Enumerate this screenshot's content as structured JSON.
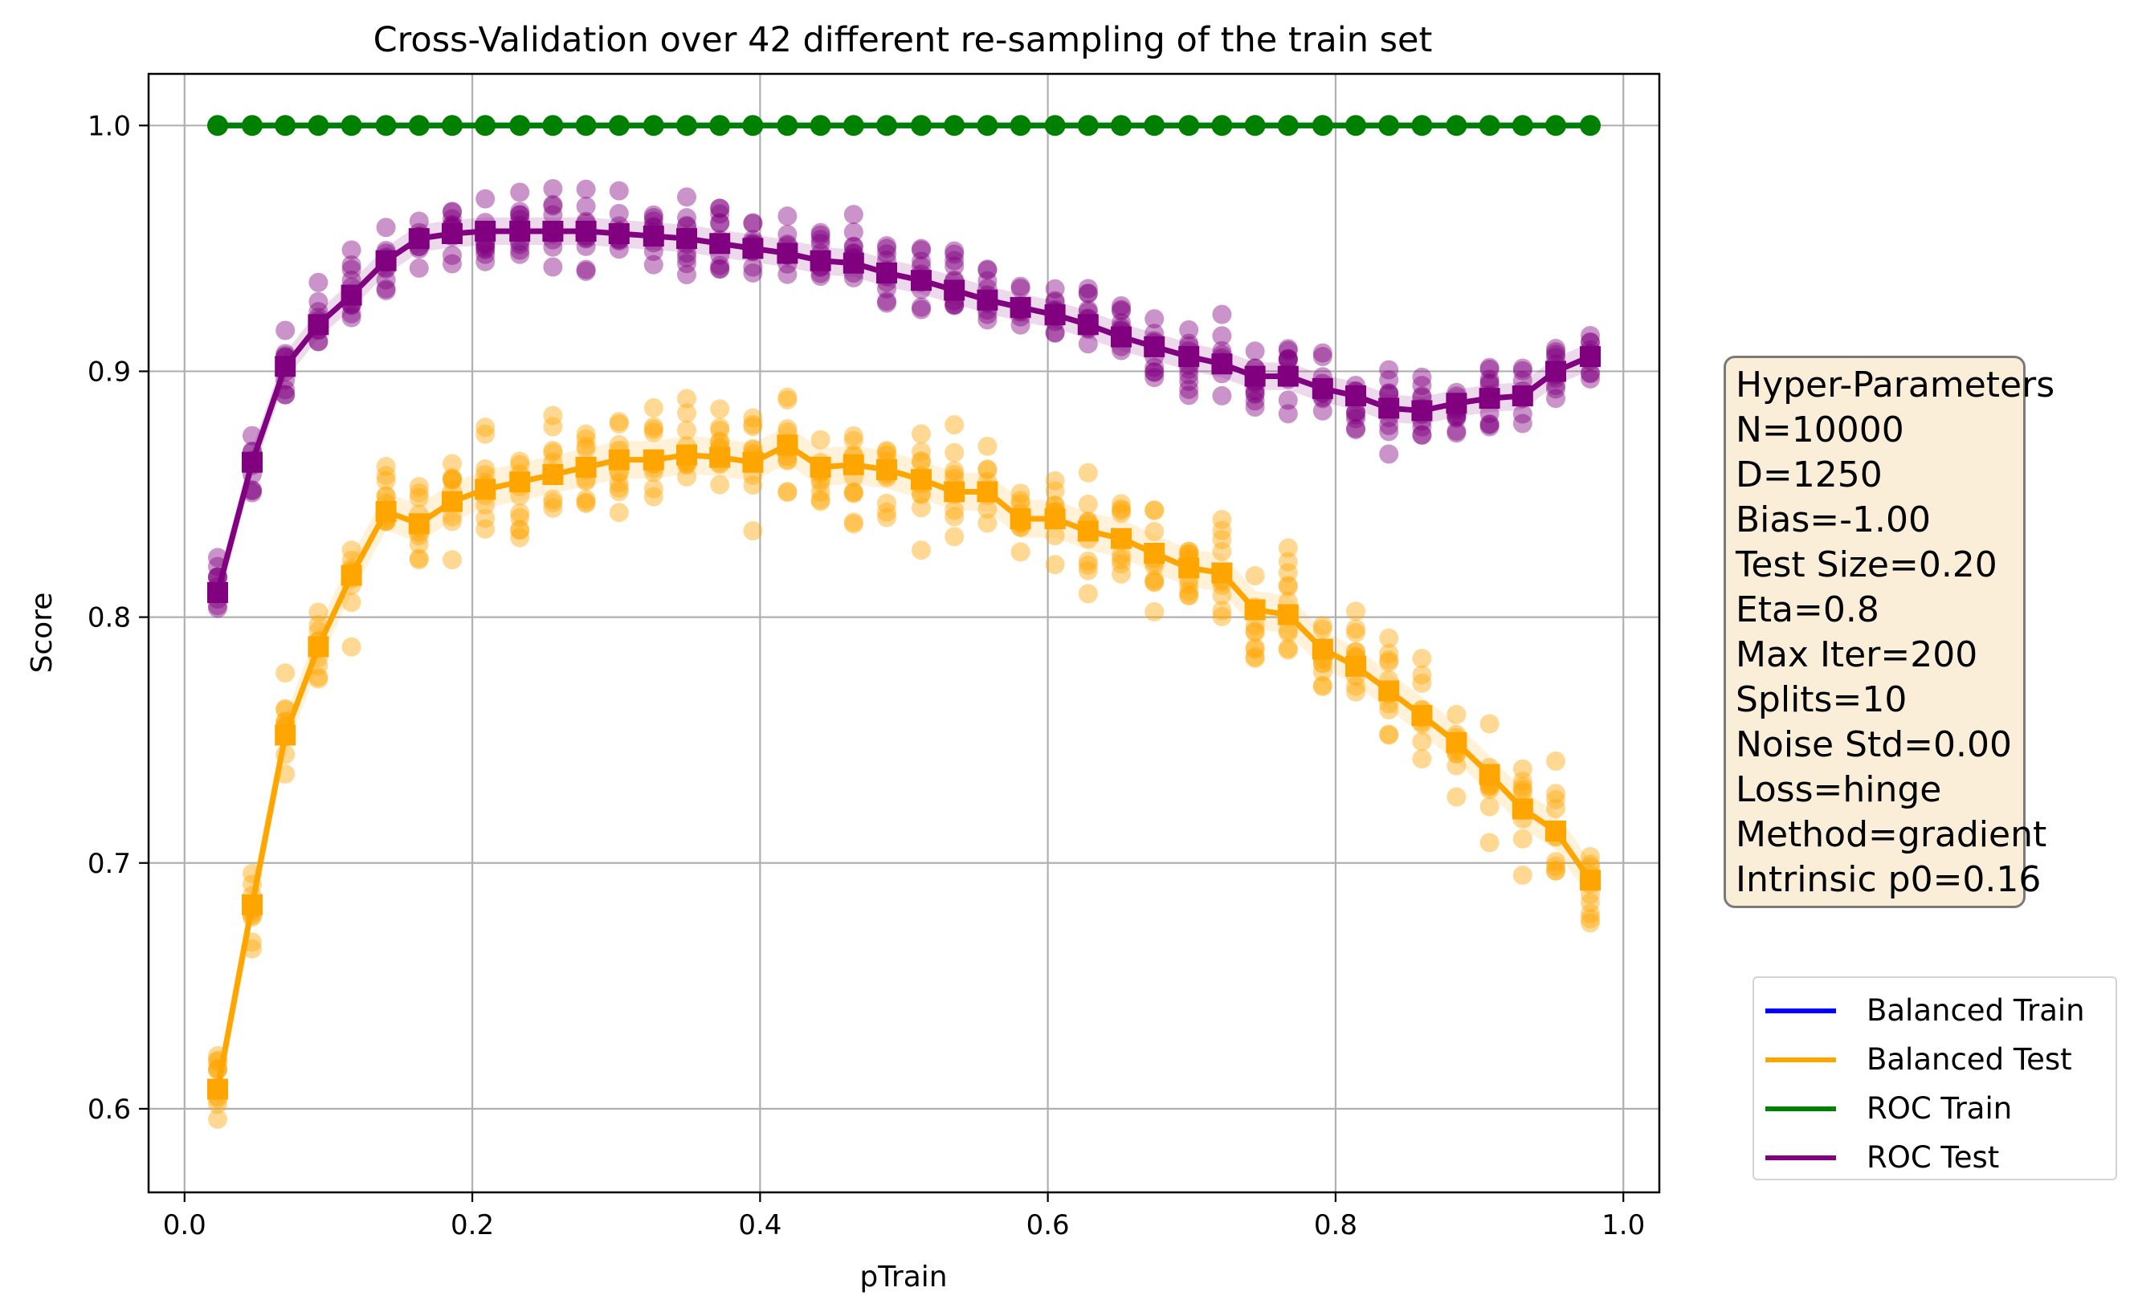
{
  "chart_data": {
    "type": "line",
    "title": "Cross-Validation over 42 different re-sampling of the train set",
    "xlabel": "pTrain",
    "ylabel": "Score",
    "xlim": [
      -0.025,
      1.025
    ],
    "ylim": [
      0.566,
      1.021
    ],
    "xticks": [
      "0.0",
      "0.2",
      "0.4",
      "0.6",
      "0.8",
      "1.0"
    ],
    "xtick_values": [
      0.0,
      0.2,
      0.4,
      0.6,
      0.8,
      1.0
    ],
    "yticks": [
      "0.6",
      "0.7",
      "0.8",
      "0.9",
      "1.0"
    ],
    "ytick_values": [
      0.6,
      0.7,
      0.8,
      0.9,
      1.0
    ],
    "grid": true,
    "legend_position": "outside-right-bottom",
    "x": [
      0.023,
      0.047,
      0.07,
      0.093,
      0.116,
      0.14,
      0.163,
      0.186,
      0.209,
      0.233,
      0.256,
      0.279,
      0.302,
      0.326,
      0.349,
      0.372,
      0.395,
      0.419,
      0.442,
      0.465,
      0.488,
      0.512,
      0.535,
      0.558,
      0.581,
      0.605,
      0.628,
      0.651,
      0.674,
      0.698,
      0.721,
      0.744,
      0.767,
      0.791,
      0.814,
      0.837,
      0.86,
      0.884,
      0.907,
      0.93,
      0.953,
      0.977
    ],
    "series": [
      {
        "name": "Balanced Train",
        "color": "#0000ff",
        "values": [
          1.0,
          1.0,
          1.0,
          1.0,
          1.0,
          1.0,
          1.0,
          1.0,
          1.0,
          1.0,
          1.0,
          1.0,
          1.0,
          1.0,
          1.0,
          1.0,
          1.0,
          1.0,
          1.0,
          1.0,
          1.0,
          1.0,
          1.0,
          1.0,
          1.0,
          1.0,
          1.0,
          1.0,
          1.0,
          1.0,
          1.0,
          1.0,
          1.0,
          1.0,
          1.0,
          1.0,
          1.0,
          1.0,
          1.0,
          1.0,
          1.0,
          1.0
        ]
      },
      {
        "name": "Balanced Test",
        "color": "#ffa500",
        "values": [
          0.608,
          0.683,
          0.752,
          0.788,
          0.817,
          0.843,
          0.838,
          0.847,
          0.852,
          0.855,
          0.858,
          0.861,
          0.864,
          0.864,
          0.866,
          0.865,
          0.863,
          0.87,
          0.861,
          0.862,
          0.86,
          0.856,
          0.851,
          0.851,
          0.84,
          0.84,
          0.835,
          0.832,
          0.826,
          0.82,
          0.818,
          0.803,
          0.801,
          0.787,
          0.78,
          0.77,
          0.76,
          0.749,
          0.736,
          0.722,
          0.713,
          0.693
        ]
      },
      {
        "name": "ROC Train",
        "color": "#008000",
        "values": [
          1.0,
          1.0,
          1.0,
          1.0,
          1.0,
          1.0,
          1.0,
          1.0,
          1.0,
          1.0,
          1.0,
          1.0,
          1.0,
          1.0,
          1.0,
          1.0,
          1.0,
          1.0,
          1.0,
          1.0,
          1.0,
          1.0,
          1.0,
          1.0,
          1.0,
          1.0,
          1.0,
          1.0,
          1.0,
          1.0,
          1.0,
          1.0,
          1.0,
          1.0,
          1.0,
          1.0,
          1.0,
          1.0,
          1.0,
          1.0,
          1.0,
          1.0
        ]
      },
      {
        "name": "ROC Test",
        "color": "#800080",
        "values": [
          0.81,
          0.863,
          0.902,
          0.919,
          0.931,
          0.945,
          0.954,
          0.956,
          0.957,
          0.957,
          0.957,
          0.957,
          0.956,
          0.955,
          0.954,
          0.952,
          0.95,
          0.948,
          0.945,
          0.944,
          0.94,
          0.937,
          0.933,
          0.929,
          0.926,
          0.923,
          0.919,
          0.914,
          0.91,
          0.906,
          0.903,
          0.898,
          0.898,
          0.893,
          0.89,
          0.885,
          0.884,
          0.887,
          0.889,
          0.89,
          0.9,
          0.906
        ]
      }
    ]
  },
  "hyperparameters": {
    "title": "Hyper-Parameters",
    "lines": [
      "N=10000",
      "D=1250",
      "Bias=-1.00",
      "Test Size=0.20",
      "Eta=0.8",
      "Max Iter=200",
      "Splits=10",
      "Noise Std=0.00",
      "Loss=hinge",
      "Method=gradient",
      "Intrinsic p0=0.16"
    ]
  }
}
